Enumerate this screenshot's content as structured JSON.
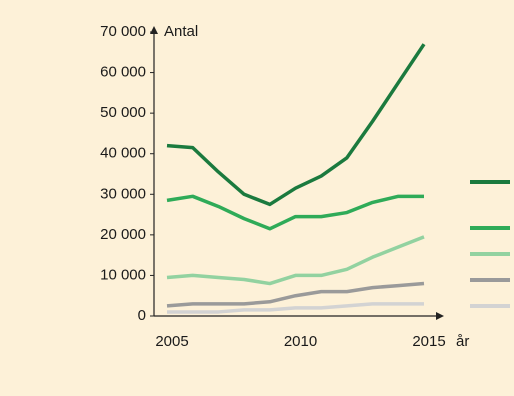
{
  "chart_data": {
    "type": "line",
    "y_label": "Antal",
    "x_label": "år",
    "x": [
      2005,
      2006,
      2007,
      2008,
      2009,
      2010,
      2011,
      2012,
      2013,
      2014,
      2015
    ],
    "series": [
      {
        "color": "#1b7a3e",
        "values": [
          42000,
          41500,
          35500,
          30000,
          27500,
          31500,
          34500,
          39000,
          48000,
          57500,
          67000
        ]
      },
      {
        "color": "#2fab58",
        "values": [
          28500,
          29500,
          27000,
          24000,
          21500,
          24500,
          24500,
          25500,
          28000,
          29500,
          29500
        ]
      },
      {
        "color": "#92d2a0",
        "values": [
          9500,
          10000,
          9500,
          9000,
          8000,
          10000,
          10000,
          11500,
          14500,
          17000,
          19500
        ]
      },
      {
        "color": "#9a9a9a",
        "values": [
          2500,
          3000,
          3000,
          3000,
          3500,
          5000,
          6000,
          6000,
          7000,
          7500,
          8000
        ]
      },
      {
        "color": "#d3d3d3",
        "values": [
          1000,
          1000,
          1000,
          1500,
          1500,
          2000,
          2000,
          2500,
          3000,
          3000,
          3000
        ]
      }
    ],
    "xlim": [
      2005,
      2015
    ],
    "xticks": [
      2005,
      2010,
      2015
    ],
    "ylim": [
      0,
      70000
    ],
    "yticks": [
      0,
      {
        "value": 10000,
        "label": "10 000"
      },
      {
        "value": 20000,
        "label": "20 000"
      },
      {
        "value": 30000,
        "label": "30 000"
      },
      {
        "value": 40000,
        "label": "40 000"
      },
      {
        "value": 50000,
        "label": "50 000"
      },
      {
        "value": 60000,
        "label": "60 000"
      },
      {
        "value": 70000,
        "label": "70 000"
      }
    ],
    "grid": false
  }
}
